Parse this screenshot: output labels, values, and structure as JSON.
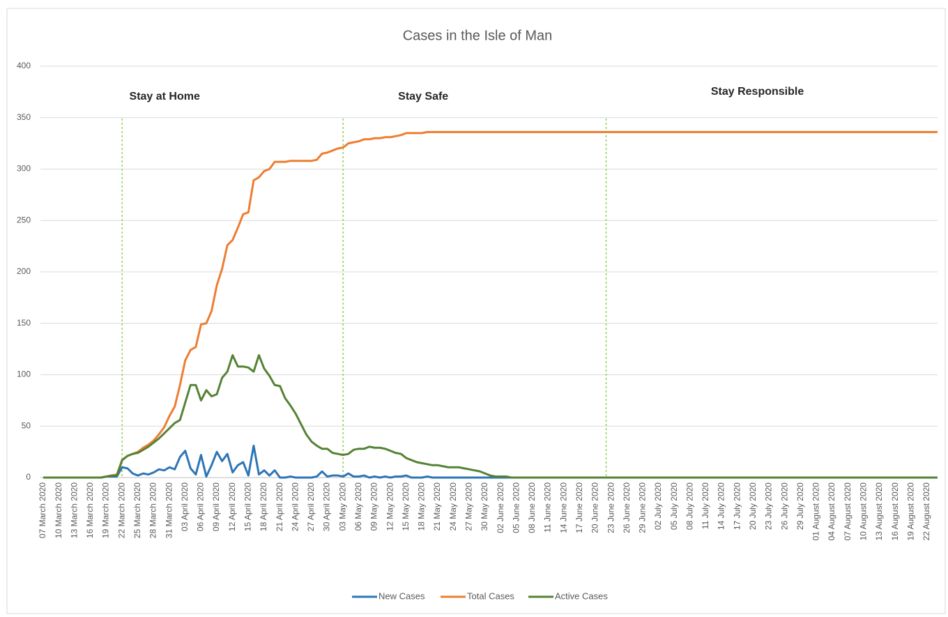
{
  "chart_data": {
    "type": "line",
    "title": "Cases in the Isle of Man",
    "categories": [
      "07 March 2020",
      null,
      null,
      "10 March 2020",
      null,
      null,
      "13 March 2020",
      null,
      null,
      "16 March 2020",
      null,
      null,
      "19 March 2020",
      null,
      null,
      "22 March 2020",
      null,
      null,
      "25 March 2020",
      null,
      null,
      "28 March 2020",
      null,
      null,
      "31 March 2020",
      null,
      null,
      "03 April 2020",
      null,
      null,
      "06 April 2020",
      null,
      null,
      "09 April 2020",
      null,
      null,
      "12 April 2020",
      null,
      null,
      "15 April 2020",
      null,
      null,
      "18 April 2020",
      null,
      null,
      "21 April 2020",
      null,
      null,
      "24 April 2020",
      null,
      null,
      "27 April 2020",
      null,
      null,
      "30 April 2020",
      null,
      null,
      "03 May 2020",
      null,
      null,
      "06 May 2020",
      null,
      null,
      "09 May 2020",
      null,
      null,
      "12 May 2020",
      null,
      null,
      "15 May 2020",
      null,
      null,
      "18 May 2020",
      null,
      null,
      "21 May 2020",
      null,
      null,
      "24 May 2020",
      null,
      null,
      "27 May 2020",
      null,
      null,
      "30 May 2020",
      null,
      null,
      "02 June 2020",
      null,
      null,
      "05 June 2020",
      null,
      null,
      "08 June 2020",
      null,
      null,
      "11 June 2020",
      null,
      null,
      "14 June 2020",
      null,
      null,
      "17 June 2020",
      null,
      null,
      "20 June 2020",
      null,
      null,
      "23 June 2020",
      null,
      null,
      "26 June 2020",
      null,
      null,
      "29 June 2020",
      null,
      null,
      "02 July 2020",
      null,
      null,
      "05 July 2020",
      null,
      null,
      "08 July 2020",
      null,
      null,
      "11 July 2020",
      null,
      null,
      "14 July 2020",
      null,
      null,
      "17 July 2020",
      null,
      null,
      "20 July 2020",
      null,
      null,
      "23 July 2020",
      null,
      null,
      "26 July 2020",
      null,
      null,
      "29 July 2020",
      null,
      null,
      "01 August 2020",
      null,
      null,
      "04 August 2020",
      null,
      null,
      "07 August 2020",
      null,
      null,
      "10 August 2020",
      null,
      null,
      "13 August 2020",
      null,
      null,
      "16 August 2020",
      null,
      null,
      "19 August 2020",
      null,
      null,
      "22 August 2020",
      null,
      null
    ],
    "series": [
      {
        "name": "New Cases",
        "color": "#2e75b6",
        "values": [
          0,
          0,
          0,
          0,
          0,
          0,
          0,
          0,
          0,
          0,
          0,
          0,
          1,
          1,
          1,
          10,
          9,
          4,
          2,
          4,
          3,
          5,
          8,
          7,
          10,
          8,
          20,
          26,
          9,
          3,
          22,
          1,
          12,
          25,
          16,
          23,
          5,
          12,
          15,
          2,
          31,
          3,
          7,
          2,
          7,
          0,
          0,
          1,
          0,
          0,
          0,
          0,
          1,
          6,
          1,
          2,
          2,
          1,
          4,
          1,
          1,
          2,
          0,
          1,
          0,
          1,
          0,
          1,
          1,
          2,
          0,
          0,
          0,
          1,
          0,
          0,
          0,
          0,
          0,
          0,
          0,
          0,
          0,
          0,
          0,
          0,
          0,
          0,
          0,
          0,
          0,
          0,
          0,
          0,
          0,
          0,
          0,
          0,
          0,
          0,
          0,
          0,
          0,
          0,
          0,
          0,
          0,
          0,
          0,
          0,
          0,
          0,
          0,
          0,
          0,
          0,
          0,
          0,
          0,
          0,
          0,
          0,
          0,
          0,
          0,
          0,
          0,
          0,
          0,
          0,
          0,
          0,
          0,
          0,
          0,
          0,
          0,
          0,
          0,
          0,
          0,
          0,
          0,
          0,
          0,
          0,
          0,
          0,
          0,
          0,
          0,
          0,
          0,
          0,
          0,
          0,
          0,
          0,
          0,
          0,
          0,
          0,
          0,
          0,
          0,
          0,
          0,
          0,
          0,
          0,
          0
        ]
      },
      {
        "name": "Total Cases",
        "color": "#ed7d31",
        "values": [
          0,
          0,
          0,
          0,
          0,
          0,
          0,
          0,
          0,
          0,
          0,
          0,
          1,
          2,
          3,
          17,
          21,
          23,
          25,
          29,
          32,
          36,
          42,
          49,
          60,
          69,
          90,
          114,
          124,
          127,
          149,
          150,
          162,
          187,
          203,
          226,
          231,
          243,
          256,
          258,
          289,
          292,
          298,
          300,
          307,
          307,
          307,
          308,
          308,
          308,
          308,
          308,
          309,
          315,
          316,
          318,
          320,
          321,
          325,
          326,
          327,
          329,
          329,
          330,
          330,
          331,
          331,
          332,
          333,
          335,
          335,
          335,
          335,
          336,
          336,
          336,
          336,
          336,
          336,
          336,
          336,
          336,
          336,
          336,
          336,
          336,
          336,
          336,
          336,
          336,
          336,
          336,
          336,
          336,
          336,
          336,
          336,
          336,
          336,
          336,
          336,
          336,
          336,
          336,
          336,
          336,
          336,
          336,
          336,
          336,
          336,
          336,
          336,
          336,
          336,
          336,
          336,
          336,
          336,
          336,
          336,
          336,
          336,
          336,
          336,
          336,
          336,
          336,
          336,
          336,
          336,
          336,
          336,
          336,
          336,
          336,
          336,
          336,
          336,
          336,
          336,
          336,
          336,
          336,
          336,
          336,
          336,
          336,
          336,
          336,
          336,
          336,
          336,
          336,
          336,
          336,
          336,
          336,
          336,
          336,
          336,
          336,
          336,
          336,
          336,
          336,
          336,
          336,
          336,
          336,
          336
        ]
      },
      {
        "name": "Active Cases",
        "color": "#548235",
        "values": [
          0,
          0,
          0,
          0,
          0,
          0,
          0,
          0,
          0,
          0,
          0,
          0,
          1,
          2,
          2,
          17,
          21,
          23,
          24,
          27,
          30,
          34,
          38,
          43,
          48,
          53,
          56,
          73,
          90,
          90,
          75,
          85,
          79,
          81,
          97,
          103,
          119,
          108,
          108,
          107,
          103,
          119,
          106,
          99,
          90,
          89,
          77,
          70,
          62,
          52,
          42,
          35,
          31,
          28,
          28,
          24,
          23,
          22,
          23,
          27,
          28,
          28,
          30,
          29,
          29,
          28,
          26,
          24,
          23,
          19,
          17,
          15,
          14,
          13,
          12,
          12,
          11,
          10,
          10,
          10,
          9,
          8,
          7,
          6,
          4,
          2,
          1,
          1,
          1,
          0,
          0,
          0,
          0,
          0,
          0,
          0,
          0,
          0,
          0,
          0,
          0,
          0,
          0,
          0,
          0,
          0,
          0,
          0,
          0,
          0,
          0,
          0,
          0,
          0,
          0,
          0,
          0,
          0,
          0,
          0,
          0,
          0,
          0,
          0,
          0,
          0,
          0,
          0,
          0,
          0,
          0,
          0,
          0,
          0,
          0,
          0,
          0,
          0,
          0,
          0,
          0,
          0,
          0,
          0,
          0,
          0,
          0,
          0,
          0,
          0,
          0,
          0,
          0,
          0,
          0,
          0,
          0,
          0,
          0,
          0,
          0,
          0,
          0,
          0,
          0,
          0,
          0,
          0,
          0,
          0,
          0
        ]
      }
    ],
    "ylim": [
      0,
      400
    ],
    "yticks": [
      0,
      50,
      100,
      150,
      200,
      250,
      300,
      350,
      400
    ],
    "grid": true,
    "legend": "bottom",
    "phase_lines": [
      15,
      57,
      107
    ],
    "phase_line_color": "#92d050",
    "phase_labels": [
      "Stay at Home",
      "Stay Safe",
      "Stay Responsible"
    ]
  }
}
